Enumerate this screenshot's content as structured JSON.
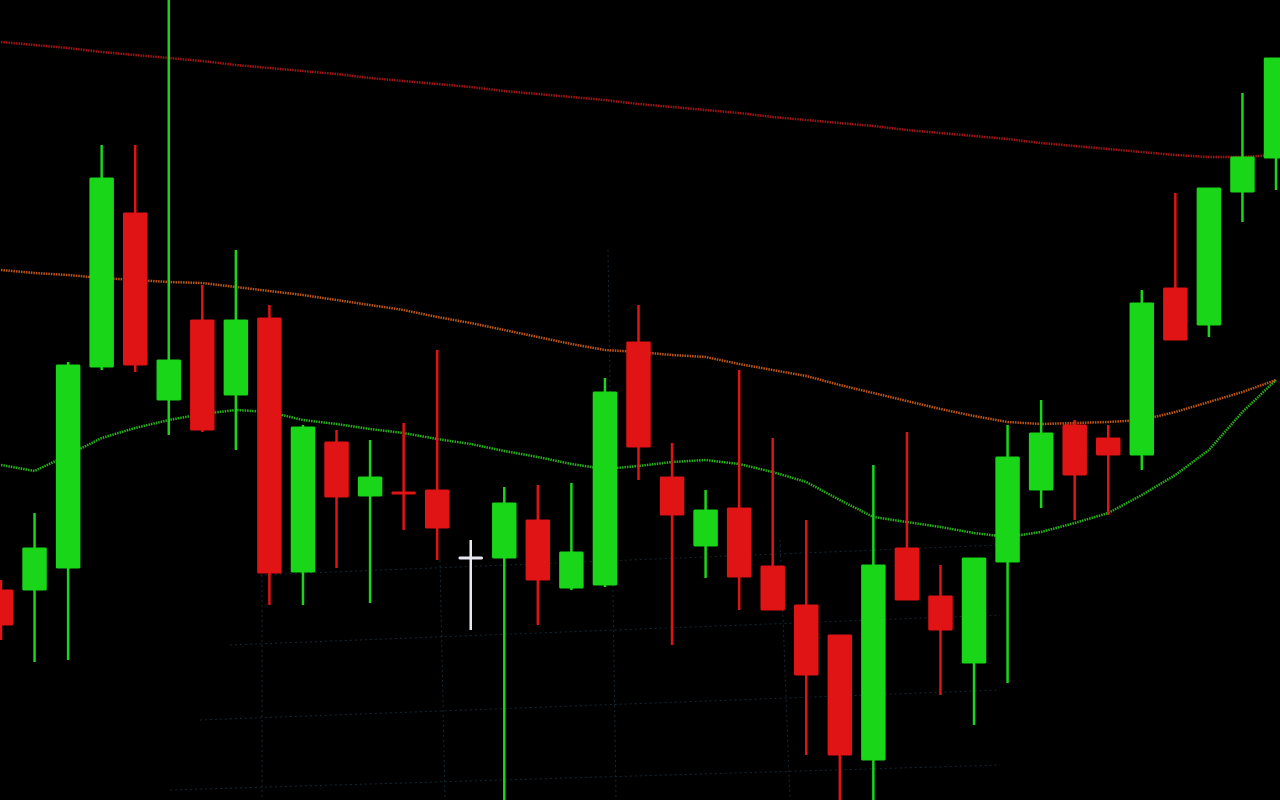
{
  "chart_data": {
    "type": "candlestick",
    "categories": [
      null,
      null,
      null,
      null,
      null,
      null,
      null,
      null,
      null,
      null,
      null,
      null,
      null,
      null,
      null,
      null,
      null,
      null,
      null,
      null,
      null,
      null,
      null,
      null,
      null,
      null,
      null,
      null,
      null,
      null,
      null,
      null,
      null,
      null,
      null,
      null,
      null,
      null,
      null
    ],
    "open": [
      210,
      210,
      232,
      433,
      587,
      400,
      480,
      405,
      482,
      228,
      358,
      304,
      308,
      310,
      243,
      242,
      280,
      212,
      215,
      458,
      323,
      254,
      292,
      234,
      195,
      165,
      40,
      252,
      204,
      137,
      238,
      310,
      375,
      362,
      345,
      512,
      475,
      608,
      642
    ],
    "high": [
      220,
      287,
      438,
      655,
      655,
      800,
      515,
      550,
      495,
      375,
      370,
      360,
      377,
      450,
      260,
      313,
      315,
      317,
      422,
      495,
      357,
      310,
      430,
      362,
      280,
      165,
      335,
      368,
      235,
      242,
      375,
      400,
      380,
      375,
      510,
      607,
      612,
      707,
      742
    ],
    "low": [
      160,
      138,
      140,
      430,
      428,
      365,
      368,
      350,
      195,
      195,
      232,
      197,
      270,
      240,
      170,
      0,
      175,
      210,
      213,
      320,
      155,
      222,
      190,
      190,
      45,
      0,
      0,
      200,
      105,
      75,
      117,
      292,
      280,
      285,
      330,
      460,
      463,
      578,
      610
    ],
    "close": [
      175,
      252,
      435,
      622,
      435,
      440,
      370,
      480,
      227,
      373,
      303,
      323,
      306,
      272,
      243,
      297,
      220,
      248,
      408,
      353,
      285,
      290,
      223,
      190,
      125,
      45,
      235,
      200,
      170,
      242,
      343,
      367,
      325,
      345,
      497,
      460,
      612,
      643,
      742
    ],
    "up_color": "#19d619",
    "down_color": "#e01414",
    "flat_color": "#e8e8f0",
    "lines": [
      {
        "color": "#b01818",
        "values": [
          758,
          755,
          752,
          748,
          745,
          742,
          739,
          735,
          732,
          729,
          726,
          722,
          719,
          716,
          713,
          709,
          706,
          703,
          700,
          696,
          693,
          690,
          687,
          683,
          680,
          677,
          674,
          670,
          667,
          664,
          661,
          657,
          654,
          651,
          648,
          645,
          643,
          643,
          645
        ]
      },
      {
        "color": "#d2601a",
        "values": [
          530,
          527,
          525,
          522,
          520,
          518,
          517,
          513,
          509,
          505,
          500,
          495,
          490,
          483,
          477,
          470,
          463,
          456,
          450,
          448,
          445,
          443,
          436,
          430,
          424,
          415,
          407,
          399,
          391,
          384,
          378,
          376,
          377,
          378,
          380,
          388,
          398,
          408,
          420
        ]
      },
      {
        "color": "#2ec41e",
        "values": [
          335,
          329,
          345,
          362,
          372,
          380,
          386,
          390,
          388,
          380,
          376,
          371,
          367,
          361,
          356,
          349,
          343,
          336,
          331,
          334,
          338,
          340,
          336,
          328,
          318,
          300,
          283,
          278,
          273,
          267,
          263,
          268,
          277,
          287,
          305,
          325,
          350,
          388,
          420
        ]
      }
    ],
    "ylim": [
      0,
      800
    ]
  }
}
